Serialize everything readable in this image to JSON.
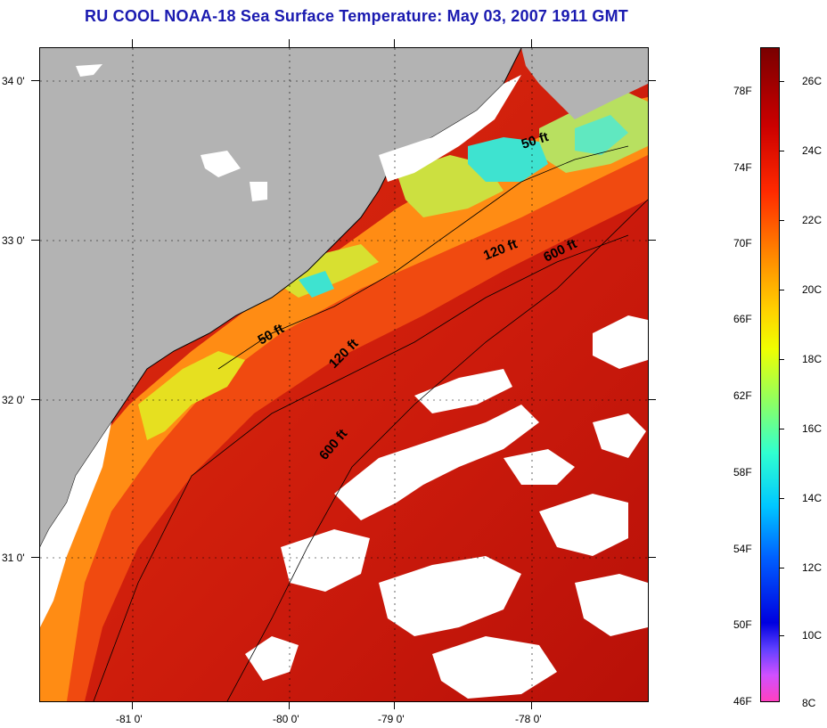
{
  "title": "RU COOL  NOAA-18  Sea Surface Temperature:  May 03, 2007 1911 GMT",
  "map": {
    "longitude_labels": [
      "-81 0'",
      "-80 0'",
      "-79 0'",
      "-78 0'"
    ],
    "latitude_labels": [
      "34 0'",
      "33 0'",
      "32 0'",
      "31 0'"
    ],
    "depth_contours": [
      {
        "label": "50 ft"
      },
      {
        "label": "50 ft"
      },
      {
        "label": "120 ft"
      },
      {
        "label": "120 ft"
      },
      {
        "label": "600 ft"
      },
      {
        "label": "600 ft"
      }
    ],
    "colors": {
      "land": "#b3b3b3",
      "cloud": "#ffffff",
      "warm_offshore": "#c81010",
      "nearshore": "#ff6a10",
      "cool_shelf": "#3ee3d0"
    }
  },
  "colorbar": {
    "fahrenheit_labels": [
      "78F",
      "74F",
      "70F",
      "66F",
      "62F",
      "58F",
      "54F",
      "50F",
      "46F"
    ],
    "celsius_labels": [
      "26C",
      "24C",
      "22C",
      "20C",
      "18C",
      "16C",
      "14C",
      "12C",
      "10C",
      "8C"
    ],
    "range_celsius": [
      8,
      27
    ]
  }
}
